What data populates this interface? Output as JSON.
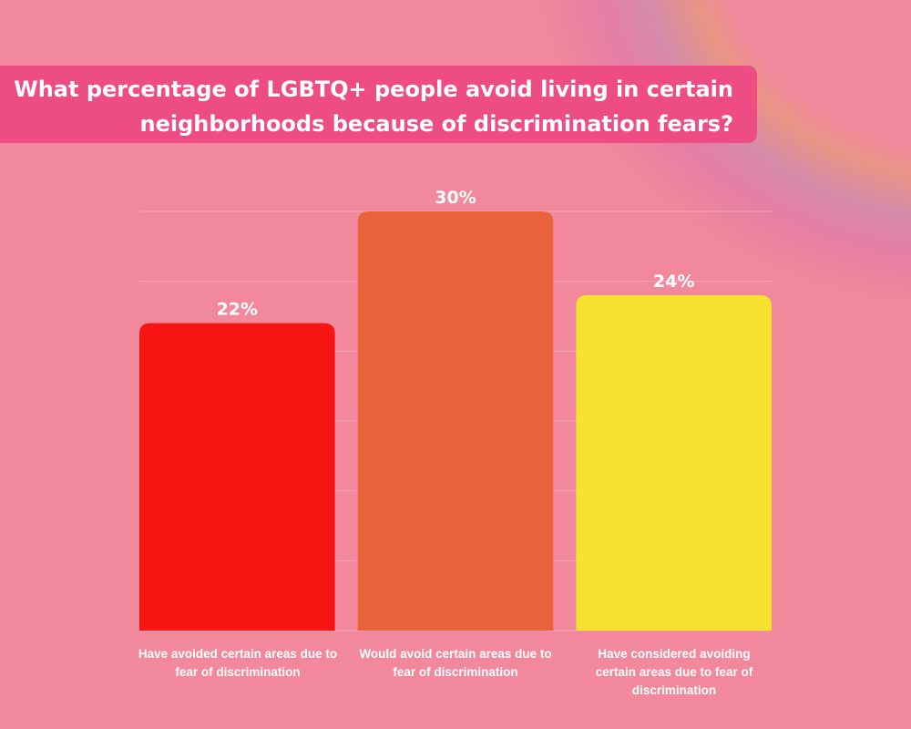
{
  "title": "What percentage of LGBTQ+ people avoid living in certain neighborhoods because of discrimination fears?",
  "colors": {
    "background": "#f1889c",
    "title_box": "#ee4d84",
    "gridline": "#f5a3b3"
  },
  "chart_data": {
    "type": "bar",
    "title": "What percentage of LGBTQ+ people avoid living in certain neighborhoods because of discrimination fears?",
    "categories": [
      "Have avoided certain areas due to fear of discrimination",
      "Would avoid certain areas due to fear of discrimination",
      "Have considered avoiding certain areas due to fear of discrimination"
    ],
    "values": [
      22,
      30,
      24
    ],
    "data_labels": [
      "22%",
      "30%",
      "24%"
    ],
    "colors": [
      "#f71514",
      "#e9643c",
      "#f6e12e"
    ],
    "ylim": [
      0,
      30
    ],
    "grid": true,
    "gridline_step": 5,
    "xlabel": "",
    "ylabel": ""
  }
}
